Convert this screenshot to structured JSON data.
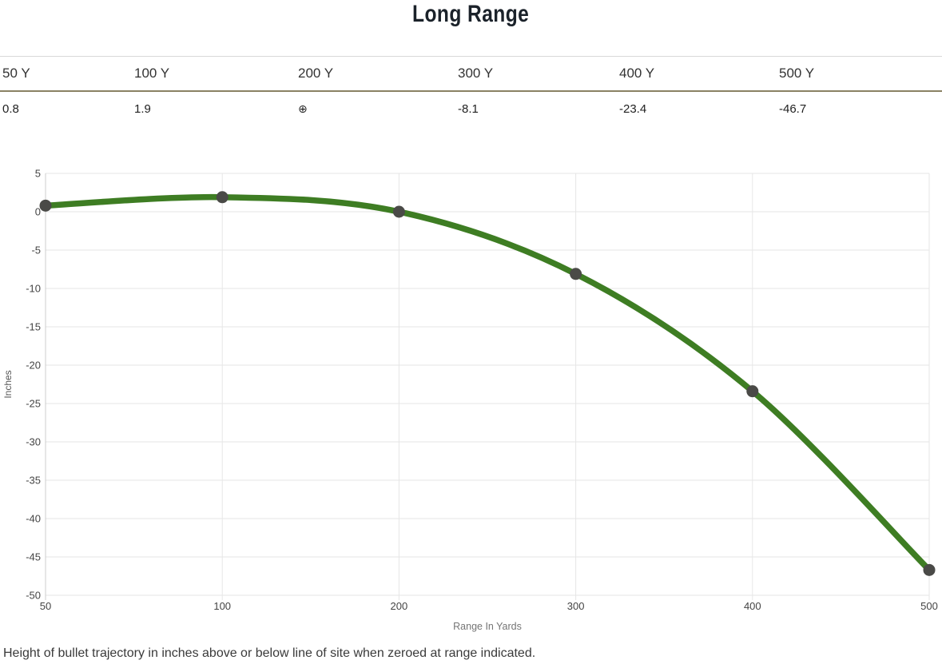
{
  "page": {
    "title": "Long Range",
    "caption": "Height of bullet trajectory in inches above or below line of site when zeroed at range indicated."
  },
  "trajectory_table": {
    "headers": [
      "50 Y",
      "100 Y",
      "200 Y",
      "300 Y",
      "400 Y",
      "500 Y"
    ],
    "values": [
      "0.8",
      "1.9",
      "⊕",
      "-8.1",
      "-23.4",
      "-46.7"
    ],
    "zero_symbol": "⊕"
  },
  "chart_data": {
    "type": "line",
    "categories": [
      "50",
      "100",
      "200",
      "300",
      "400",
      "500"
    ],
    "x": [
      50,
      100,
      200,
      300,
      400,
      500
    ],
    "values": [
      0.8,
      1.9,
      0,
      -8.1,
      -23.4,
      -46.7
    ],
    "title": "",
    "xlabel": "Range In Yards",
    "ylabel": "Inches",
    "ylim": [
      -50,
      5
    ],
    "y_ticks": [
      5,
      0,
      -5,
      -10,
      -15,
      -20,
      -25,
      -30,
      -35,
      -40,
      -45,
      -50
    ],
    "grid": true,
    "smooth": true,
    "legend": "none",
    "line_color": "#3e7d23",
    "point_color": "#4a4a47",
    "gridline_color": "#e6e6e6",
    "axis_line_color": "#cccccc",
    "tick_label_color": "#444444",
    "axis_title_color": "#757575"
  },
  "colors": {
    "title_text": "#1b222a",
    "table_accent_border": "#8a8164",
    "table_top_border": "#d9d9d9",
    "caption_text": "#3a3a3a"
  }
}
